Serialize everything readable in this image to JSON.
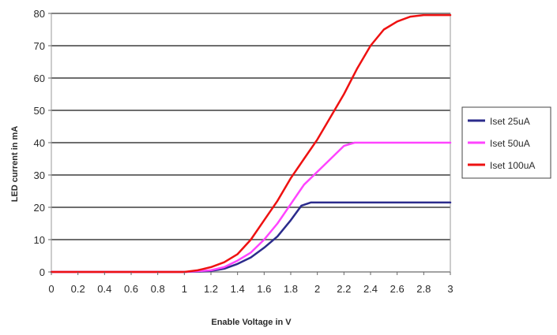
{
  "chart_data": {
    "type": "line",
    "title": "",
    "xlabel": "Enable Voltage in V",
    "ylabel": "LED current in mA",
    "xlim": [
      0,
      3
    ],
    "ylim": [
      0,
      80
    ],
    "x_ticks": [
      "0",
      "0.2",
      "0.4",
      "0.6",
      "0.8",
      "1",
      "1.2",
      "1.4",
      "1.6",
      "1.8",
      "2",
      "2.2",
      "2.4",
      "2.6",
      "2.8",
      "3"
    ],
    "y_ticks": [
      "0",
      "10",
      "20",
      "30",
      "40",
      "50",
      "60",
      "70",
      "80"
    ],
    "grid": "horizontal",
    "legend_position": "right",
    "series": [
      {
        "name": "Iset 25uA",
        "color": "#2b2b8c",
        "points": [
          [
            0,
            0
          ],
          [
            1.0,
            0
          ],
          [
            1.2,
            0.3
          ],
          [
            1.3,
            1
          ],
          [
            1.4,
            2.5
          ],
          [
            1.5,
            4.5
          ],
          [
            1.6,
            7.5
          ],
          [
            1.7,
            11
          ],
          [
            1.8,
            16
          ],
          [
            1.88,
            20.5
          ],
          [
            1.95,
            21.5
          ],
          [
            3.0,
            21.5
          ]
        ]
      },
      {
        "name": "Iset 50uA",
        "color": "#ff44ff",
        "points": [
          [
            0,
            0
          ],
          [
            1.0,
            0
          ],
          [
            1.2,
            0.5
          ],
          [
            1.3,
            1.5
          ],
          [
            1.4,
            3.5
          ],
          [
            1.5,
            6
          ],
          [
            1.6,
            10
          ],
          [
            1.7,
            15
          ],
          [
            1.8,
            21
          ],
          [
            1.9,
            27
          ],
          [
            2.0,
            31
          ],
          [
            2.1,
            35
          ],
          [
            2.2,
            39
          ],
          [
            2.28,
            40
          ],
          [
            2.6,
            40
          ],
          [
            3.0,
            40
          ]
        ]
      },
      {
        "name": "Iset 100uA",
        "color": "#ee1111",
        "points": [
          [
            0,
            0
          ],
          [
            1.0,
            0
          ],
          [
            1.1,
            0.5
          ],
          [
            1.2,
            1.5
          ],
          [
            1.3,
            3
          ],
          [
            1.4,
            5.5
          ],
          [
            1.5,
            10
          ],
          [
            1.6,
            16
          ],
          [
            1.7,
            22
          ],
          [
            1.8,
            29
          ],
          [
            1.9,
            35
          ],
          [
            2.0,
            41
          ],
          [
            2.1,
            48
          ],
          [
            2.2,
            55
          ],
          [
            2.3,
            63
          ],
          [
            2.4,
            70
          ],
          [
            2.5,
            75
          ],
          [
            2.6,
            77.5
          ],
          [
            2.7,
            79
          ],
          [
            2.8,
            79.5
          ],
          [
            3.0,
            79.5
          ]
        ]
      }
    ]
  }
}
